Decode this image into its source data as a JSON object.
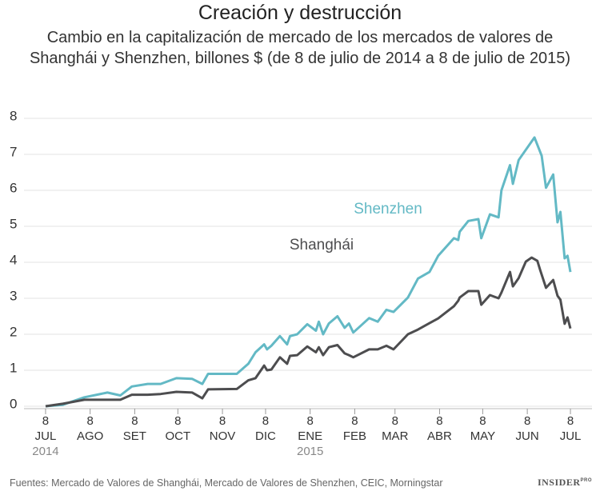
{
  "chart_data": {
    "type": "line",
    "title": "Creación y destrucción",
    "subtitle": "Cambio en la capitalización de mercado de los mercados de valores de Shanghái y Shenzhen, billones $ (de 8 de julio de 2014 a 8 de julio de 2015)",
    "source": "Fuentes: Mercado de Valores de Shanghái, Mercado de Valores de Shenzhen, CEIC, Morningstar",
    "brand": "INSIDER",
    "brand_sup": "PRO",
    "ylim": [
      0,
      8
    ],
    "yticks": [
      0,
      1,
      2,
      3,
      4,
      5,
      6,
      7,
      8
    ],
    "grid": true,
    "xlim": [
      -15,
      380
    ],
    "xticks": [
      {
        "value": 0,
        "day": "8",
        "month": "JUL",
        "year": "2014"
      },
      {
        "value": 31,
        "day": "8",
        "month": "AGO"
      },
      {
        "value": 62,
        "day": "8",
        "month": "SET"
      },
      {
        "value": 92,
        "day": "8",
        "month": "OCT"
      },
      {
        "value": 123,
        "day": "8",
        "month": "NOV"
      },
      {
        "value": 153,
        "day": "8",
        "month": "DIC"
      },
      {
        "value": 184,
        "day": "8",
        "month": "ENE",
        "year": "2015"
      },
      {
        "value": 215,
        "day": "8",
        "month": "FEB"
      },
      {
        "value": 243,
        "day": "8",
        "month": "MAR"
      },
      {
        "value": 274,
        "day": "8",
        "month": "ABR"
      },
      {
        "value": 304,
        "day": "8",
        "month": "MAY"
      },
      {
        "value": 335,
        "day": "8",
        "month": "JUN"
      },
      {
        "value": 365,
        "day": "8",
        "month": "JUL"
      }
    ],
    "series": [
      {
        "name": "Shenzhen",
        "color": "#63b9c5",
        "x": [
          0,
          12,
          27,
          43,
          52,
          60,
          71,
          80,
          91,
          102,
          109,
          113,
          133,
          141,
          146,
          152,
          154,
          157,
          163,
          168,
          170,
          175,
          182,
          188,
          190,
          193,
          197,
          203,
          208,
          211,
          214,
          225,
          231,
          237,
          242,
          252,
          259,
          267,
          273,
          284,
          287,
          288,
          294,
          301,
          303,
          309,
          315,
          317,
          323,
          325,
          329,
          340,
          345,
          348,
          353,
          356,
          358,
          361,
          363,
          365
        ],
        "values": [
          0,
          0.04,
          0.25,
          0.38,
          0.3,
          0.55,
          0.62,
          0.62,
          0.78,
          0.76,
          0.62,
          0.9,
          0.9,
          1.18,
          1.5,
          1.72,
          1.58,
          1.68,
          1.95,
          1.72,
          1.95,
          2.0,
          2.28,
          2.1,
          2.35,
          2.0,
          2.3,
          2.5,
          2.18,
          2.3,
          2.05,
          2.45,
          2.35,
          2.68,
          2.62,
          3.02,
          3.55,
          3.73,
          4.18,
          4.67,
          4.62,
          4.85,
          5.15,
          5.2,
          4.67,
          5.33,
          5.25,
          6.0,
          6.7,
          6.18,
          6.84,
          7.47,
          6.96,
          6.07,
          6.44,
          5.11,
          5.4,
          4.11,
          4.18,
          3.73
        ]
      },
      {
        "name": "Shanghái",
        "color": "#4d4d4f",
        "x": [
          0,
          12,
          27,
          43,
          52,
          60,
          71,
          80,
          91,
          102,
          109,
          113,
          133,
          141,
          146,
          152,
          154,
          157,
          163,
          168,
          170,
          175,
          182,
          188,
          190,
          193,
          197,
          203,
          208,
          211,
          214,
          225,
          231,
          237,
          242,
          252,
          259,
          267,
          273,
          284,
          287,
          288,
          294,
          301,
          303,
          309,
          315,
          317,
          323,
          325,
          329,
          334,
          338,
          342,
          344,
          348,
          353,
          356,
          358,
          361,
          363,
          365
        ],
        "values": [
          0,
          0.07,
          0.18,
          0.18,
          0.18,
          0.32,
          0.32,
          0.34,
          0.4,
          0.38,
          0.22,
          0.47,
          0.48,
          0.72,
          0.78,
          1.13,
          1.0,
          1.02,
          1.36,
          1.18,
          1.4,
          1.42,
          1.66,
          1.5,
          1.64,
          1.42,
          1.64,
          1.7,
          1.47,
          1.42,
          1.36,
          1.58,
          1.58,
          1.68,
          1.58,
          2.0,
          2.13,
          2.31,
          2.44,
          2.78,
          2.93,
          3.02,
          3.2,
          3.2,
          2.82,
          3.09,
          3.0,
          3.16,
          3.73,
          3.33,
          3.56,
          4.02,
          4.13,
          4.04,
          3.78,
          3.29,
          3.51,
          3.07,
          2.96,
          2.29,
          2.47,
          2.16
        ]
      }
    ]
  }
}
